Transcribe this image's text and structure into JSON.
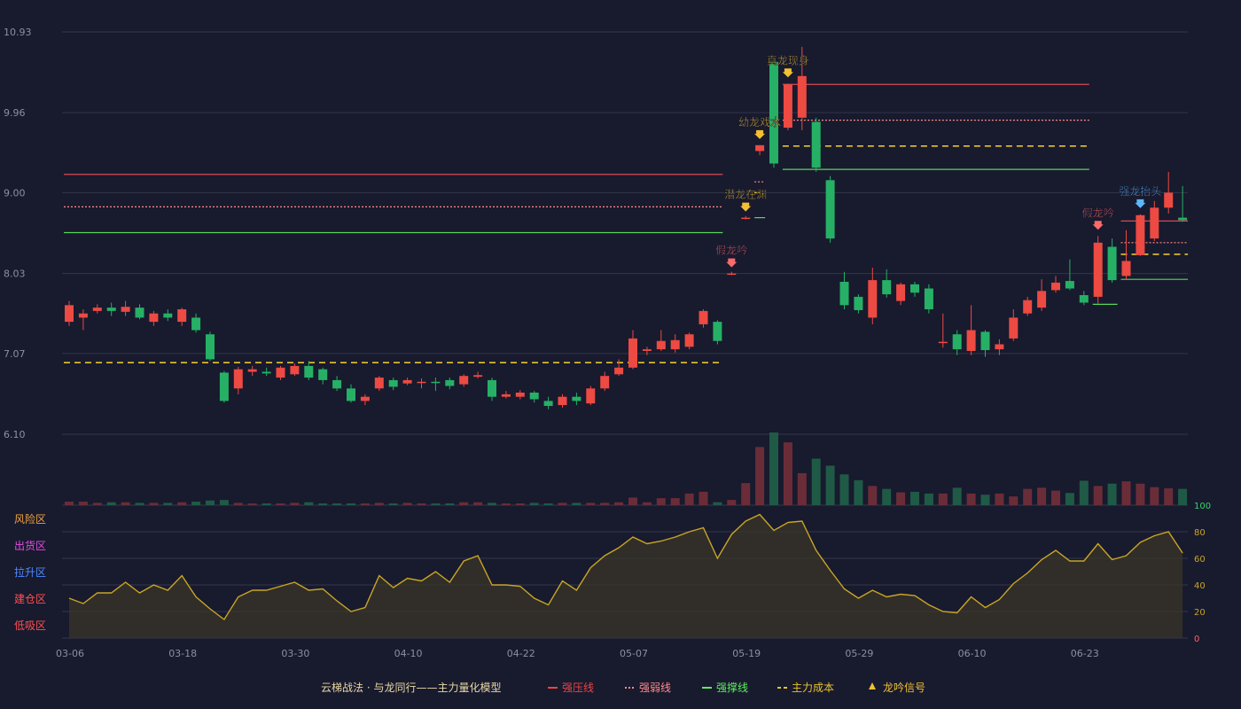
{
  "chart_data": [
    {
      "type": "candlestick",
      "ylim": [
        6.1,
        10.93
      ],
      "y_ticks": [
        "10.93",
        "9.96",
        "9.00",
        "8.03",
        "7.07",
        "6.10"
      ],
      "grid": true,
      "x_ticks": [
        {
          "index": 0,
          "label": "03-06"
        },
        {
          "index": 8,
          "label": "03-18"
        },
        {
          "index": 16,
          "label": "03-30"
        },
        {
          "index": 24,
          "label": "04-10"
        },
        {
          "index": 32,
          "label": "04-22"
        },
        {
          "index": 40,
          "label": "05-07"
        },
        {
          "index": 48,
          "label": "05-19"
        },
        {
          "index": 56,
          "label": "05-29"
        },
        {
          "index": 64,
          "label": "06-10"
        },
        {
          "index": 72,
          "label": "06-23"
        }
      ],
      "candles": [
        [
          7.45,
          7.65,
          7.7,
          7.4
        ],
        [
          7.5,
          7.55,
          7.6,
          7.35
        ],
        [
          7.58,
          7.62,
          7.66,
          7.55
        ],
        [
          7.62,
          7.58,
          7.68,
          7.52
        ],
        [
          7.57,
          7.63,
          7.7,
          7.52
        ],
        [
          7.62,
          7.5,
          7.66,
          7.48
        ],
        [
          7.45,
          7.55,
          7.58,
          7.4
        ],
        [
          7.55,
          7.5,
          7.6,
          7.46
        ],
        [
          7.45,
          7.6,
          7.62,
          7.4
        ],
        [
          7.5,
          7.35,
          7.55,
          7.32
        ],
        [
          7.3,
          7.0,
          7.33,
          6.98
        ],
        [
          6.84,
          6.5,
          6.86,
          6.48
        ],
        [
          6.65,
          6.88,
          6.91,
          6.58
        ],
        [
          6.85,
          6.88,
          6.92,
          6.8
        ],
        [
          6.85,
          6.83,
          6.9,
          6.8
        ],
        [
          6.78,
          6.9,
          6.92,
          6.75
        ],
        [
          6.82,
          6.92,
          6.95,
          6.8
        ],
        [
          6.92,
          6.78,
          6.98,
          6.75
        ],
        [
          6.88,
          6.75,
          6.9,
          6.7
        ],
        [
          6.75,
          6.65,
          6.8,
          6.62
        ],
        [
          6.65,
          6.5,
          6.7,
          6.48
        ],
        [
          6.5,
          6.55,
          6.58,
          6.45
        ],
        [
          6.65,
          6.78,
          6.8,
          6.62
        ],
        [
          6.75,
          6.67,
          6.78,
          6.63
        ],
        [
          6.71,
          6.75,
          6.78,
          6.69
        ],
        [
          6.72,
          6.73,
          6.77,
          6.65
        ],
        [
          6.73,
          6.72,
          6.78,
          6.62
        ],
        [
          6.75,
          6.68,
          6.78,
          6.64
        ],
        [
          6.7,
          6.8,
          6.82,
          6.67
        ],
        [
          6.79,
          6.81,
          6.85,
          6.77
        ],
        [
          6.75,
          6.55,
          6.78,
          6.5
        ],
        [
          6.55,
          6.58,
          6.62,
          6.53
        ],
        [
          6.55,
          6.6,
          6.63,
          6.52
        ],
        [
          6.6,
          6.52,
          6.62,
          6.48
        ],
        [
          6.5,
          6.44,
          6.55,
          6.4
        ],
        [
          6.45,
          6.55,
          6.58,
          6.42
        ],
        [
          6.55,
          6.5,
          6.6,
          6.45
        ],
        [
          6.47,
          6.65,
          6.68,
          6.45
        ],
        [
          6.65,
          6.8,
          6.85,
          6.62
        ],
        [
          6.82,
          6.9,
          7.0,
          6.8
        ],
        [
          6.9,
          7.25,
          7.35,
          6.88
        ],
        [
          7.1,
          7.12,
          7.15,
          7.05
        ],
        [
          7.12,
          7.22,
          7.35,
          7.1
        ],
        [
          7.12,
          7.23,
          7.3,
          7.08
        ],
        [
          7.15,
          7.3,
          7.32,
          7.12
        ],
        [
          7.42,
          7.58,
          7.6,
          7.38
        ],
        [
          7.45,
          7.22,
          7.47,
          7.18
        ],
        [
          8.03,
          8.03,
          8.05,
          8.01
        ],
        [
          8.7,
          8.7,
          8.72,
          8.68
        ],
        [
          9.5,
          9.57,
          9.57,
          9.45
        ],
        [
          10.57,
          9.35,
          10.6,
          9.3
        ],
        [
          9.78,
          10.3,
          10.31,
          9.75
        ],
        [
          9.9,
          10.4,
          10.75,
          9.75
        ],
        [
          9.85,
          9.3,
          9.9,
          9.25
        ],
        [
          9.15,
          8.45,
          9.2,
          8.4
        ],
        [
          7.93,
          7.65,
          8.05,
          7.6
        ],
        [
          7.75,
          7.59,
          7.78,
          7.55
        ],
        [
          7.5,
          7.95,
          8.1,
          7.42
        ],
        [
          7.95,
          7.78,
          8.08,
          7.74
        ],
        [
          7.7,
          7.9,
          7.92,
          7.65
        ],
        [
          7.9,
          7.8,
          7.93,
          7.75
        ],
        [
          7.85,
          7.6,
          7.9,
          7.55
        ],
        [
          7.21,
          7.21,
          7.55,
          7.14
        ],
        [
          7.3,
          7.12,
          7.35,
          7.05
        ],
        [
          7.1,
          7.35,
          7.65,
          7.05
        ],
        [
          7.33,
          7.11,
          7.35,
          7.03
        ],
        [
          7.12,
          7.18,
          7.24,
          7.05
        ],
        [
          7.25,
          7.5,
          7.6,
          7.22
        ],
        [
          7.55,
          7.71,
          7.75,
          7.52
        ],
        [
          7.62,
          7.82,
          7.96,
          7.58
        ],
        [
          7.83,
          7.92,
          8.0,
          7.8
        ],
        [
          7.94,
          7.85,
          8.2,
          7.83
        ],
        [
          7.77,
          7.68,
          7.82,
          7.65
        ],
        [
          7.75,
          8.4,
          8.48,
          7.67
        ],
        [
          8.35,
          7.95,
          8.45,
          7.92
        ],
        [
          8.0,
          8.18,
          8.55,
          7.96
        ],
        [
          8.25,
          8.73,
          8.74,
          8.24
        ],
        [
          8.45,
          8.82,
          8.9,
          8.42
        ],
        [
          8.82,
          9.0,
          9.25,
          8.75
        ],
        [
          8.7,
          8.67,
          9.08,
          8.65
        ]
      ],
      "annotations": [
        {
          "index": 47,
          "text": "假龙吟",
          "kind": "fake",
          "price": 8.03
        },
        {
          "index": 48,
          "text": "潜龙在渊",
          "kind": "signal",
          "price": 8.7
        },
        {
          "index": 49,
          "text": "幼龙戏水",
          "kind": "signal",
          "price": 9.57
        },
        {
          "index": 51,
          "text": "真龙现身",
          "kind": "signal",
          "price": 10.31
        },
        {
          "index": 73,
          "text": "假龙吟",
          "kind": "fake",
          "price": 8.48
        },
        {
          "index": 76,
          "text": "强龙抬头",
          "kind": "strong",
          "price": 8.74
        }
      ],
      "levels": [
        {
          "type": "strong_resist",
          "value": 9.22,
          "from": 0,
          "to": 46
        },
        {
          "type": "weak_resist",
          "value": 8.83,
          "from": 0,
          "to": 46
        },
        {
          "type": "strong_support",
          "value": 8.52,
          "from": 0,
          "to": 46
        },
        {
          "type": "main_cost",
          "value": 6.96,
          "from": 0,
          "to": 46
        },
        {
          "type": "strong_support",
          "value": 8.7,
          "from": 49,
          "to": 49
        },
        {
          "type": "main_cost",
          "value": 9.0,
          "from": 49,
          "to": 49
        },
        {
          "type": "weak_resist",
          "value": 9.13,
          "from": 49,
          "to": 49
        },
        {
          "type": "strong_resist",
          "value": 10.3,
          "from": 51,
          "to": 72
        },
        {
          "type": "weak_resist",
          "value": 9.87,
          "from": 51,
          "to": 72
        },
        {
          "type": "main_cost",
          "value": 9.56,
          "from": 51,
          "to": 72
        },
        {
          "type": "strong_support",
          "value": 9.28,
          "from": 51,
          "to": 72
        },
        {
          "type": "strong_support",
          "value": 7.66,
          "from": 73,
          "to": 74
        },
        {
          "type": "strong_resist",
          "value": 8.66,
          "from": 75,
          "to": 79
        },
        {
          "type": "weak_resist",
          "value": 8.4,
          "from": 75,
          "to": 79
        },
        {
          "type": "main_cost",
          "value": 8.26,
          "from": 75,
          "to": 79
        },
        {
          "type": "strong_support",
          "value": 7.96,
          "from": 75,
          "to": 79
        }
      ]
    },
    {
      "type": "bar",
      "name": "volume",
      "values": [
        6,
        6,
        4,
        5,
        5,
        4,
        4,
        4,
        5,
        6,
        8,
        9,
        4,
        3,
        3,
        3,
        4,
        5,
        3,
        3,
        3,
        3,
        4,
        3,
        4,
        3,
        3,
        3,
        5,
        5,
        4,
        3,
        3,
        4,
        3,
        4,
        4,
        4,
        4,
        5,
        13,
        5,
        12,
        12,
        20,
        23,
        5,
        9,
        38,
        100,
        125,
        108,
        55,
        80,
        68,
        53,
        43,
        33,
        28,
        22,
        23,
        20,
        20,
        30,
        20,
        18,
        20,
        15,
        28,
        30,
        25,
        21,
        42,
        33,
        37,
        41,
        37,
        31,
        29,
        28
      ]
    },
    {
      "type": "line",
      "ylim": [
        0,
        100
      ],
      "y_ticks": [
        "100",
        "80",
        "60",
        "40",
        "20",
        "0"
      ],
      "zones": [
        "风险区",
        "出货区",
        "拉升区",
        "建仓区",
        "低吸区"
      ],
      "values": [
        30,
        26,
        34,
        34,
        42,
        34,
        40,
        36,
        47,
        31,
        22,
        14,
        31,
        36,
        36,
        39,
        42,
        36,
        37,
        28,
        20,
        23,
        47,
        38,
        45,
        43,
        50,
        42,
        58,
        62,
        40,
        40,
        39,
        30,
        25,
        43,
        36,
        53,
        62,
        68,
        76,
        71,
        73,
        76,
        80,
        83,
        60,
        78,
        88,
        93,
        81,
        87,
        88,
        66,
        51,
        37,
        30,
        36,
        31,
        33,
        32,
        25,
        20,
        19,
        31,
        23,
        29,
        41,
        49,
        59,
        66,
        58,
        58,
        71,
        59,
        62,
        72,
        77,
        80,
        64
      ]
    }
  ],
  "legend": {
    "title": "云梯战法 · 与龙同行——主力量化模型",
    "items": [
      {
        "key": "strong_resist",
        "label": "强压线",
        "color": "#ee4444"
      },
      {
        "key": "weak_resist",
        "label": "强弱线",
        "color": "#ff8a8a"
      },
      {
        "key": "strong_support",
        "label": "强撑线",
        "color": "#5cf05c"
      },
      {
        "key": "main_cost",
        "label": "主力成本",
        "color": "#e8c32a"
      },
      {
        "key": "signal",
        "label": "龙吟信号",
        "color": "#f2c030"
      }
    ]
  },
  "colors": {
    "background": "#181a2e",
    "up": "#ec4a42",
    "down": "#26b066",
    "grid": "#33364a",
    "axis_text": "#8d8fa0",
    "oscillator_line": "#c9a524",
    "fake_signal": "#ff6a6a",
    "strong_signal": "#59b8ff",
    "zone_colors": [
      "#f0a33c",
      "#e04ee0",
      "#4f8bff",
      "#ff5050",
      "#ff5050"
    ]
  }
}
